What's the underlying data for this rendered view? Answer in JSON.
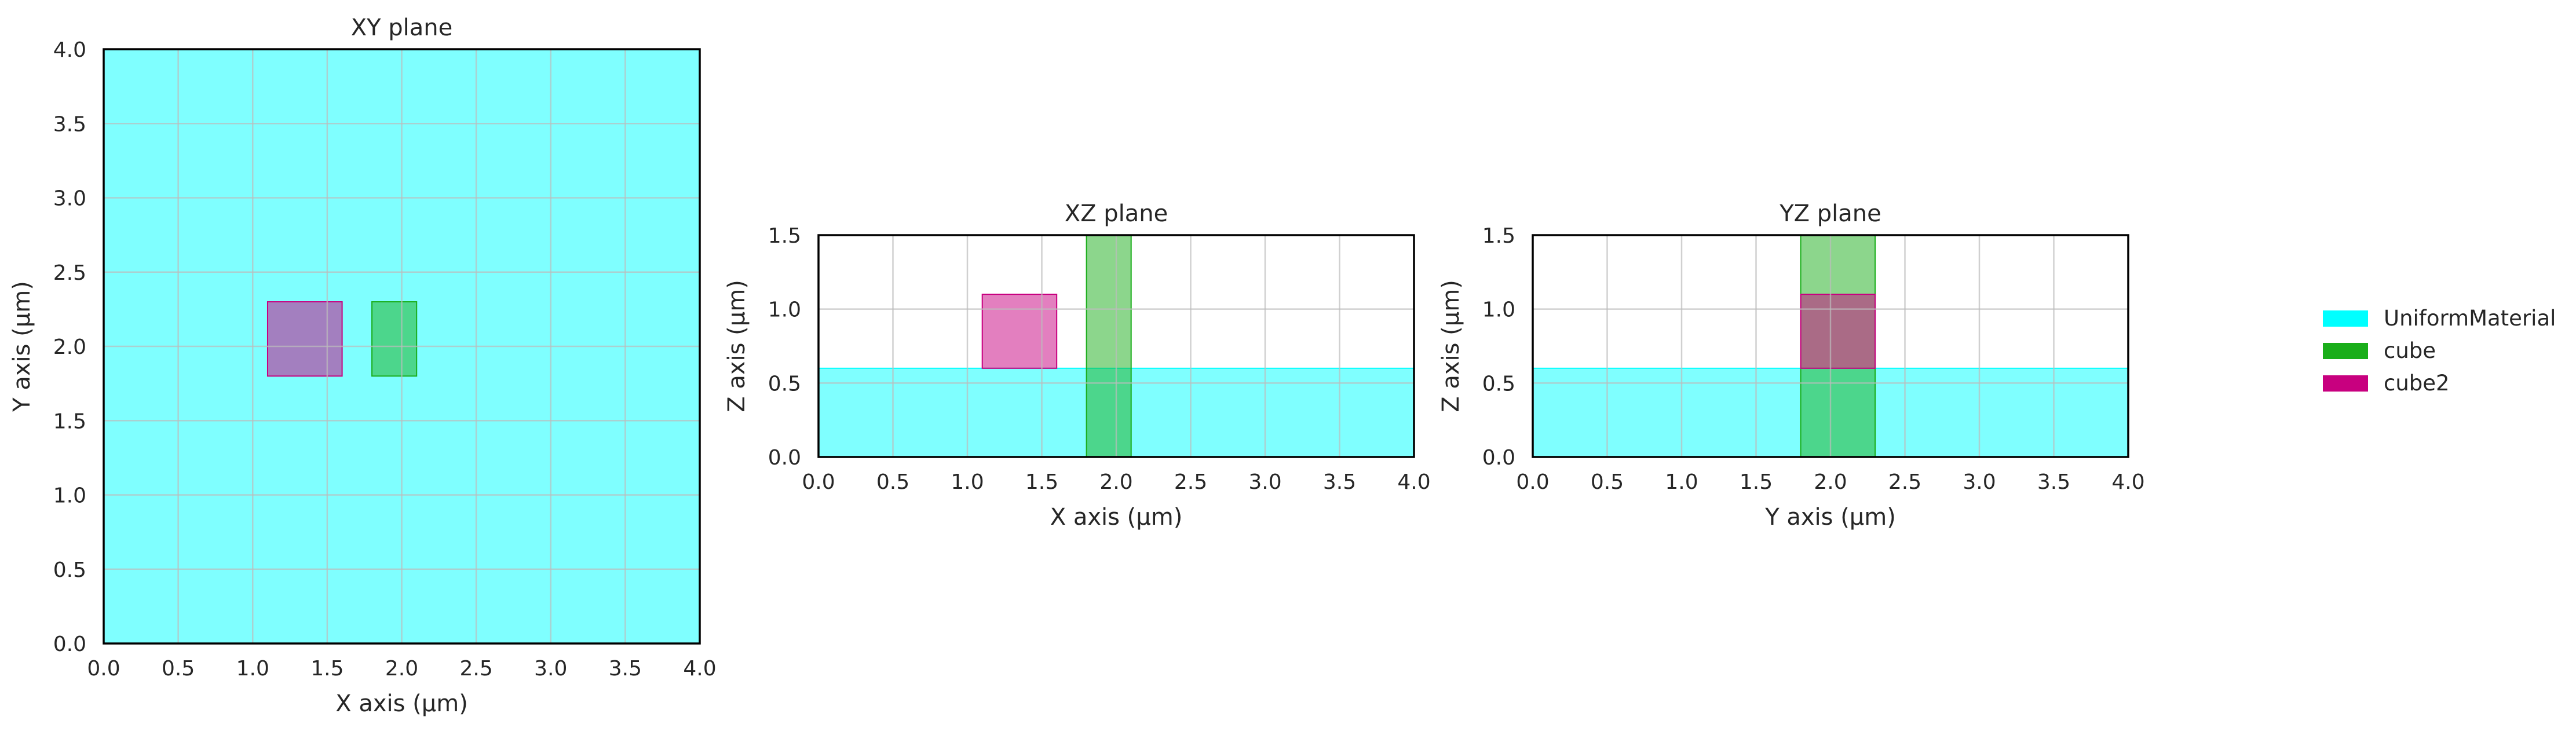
{
  "colors": {
    "UniformMaterial": "#00ffff",
    "cube": "#1aae1a",
    "cube2": "#c8007f",
    "grid": "#bcbcbc",
    "frame": "#000000",
    "text": "#262626"
  },
  "legend": {
    "placement": "right",
    "entries": [
      {
        "label": "UniformMaterial",
        "color": "#00ffff"
      },
      {
        "label": "cube",
        "color": "#1aae1a"
      },
      {
        "label": "cube2",
        "color": "#c8007f"
      }
    ]
  },
  "chart_data": [
    {
      "type": "area",
      "title": "XY plane",
      "xlabel": "X axis (µm)",
      "ylabel": "Y axis (µm)",
      "xlim": [
        0.0,
        4.0
      ],
      "ylim": [
        0.0,
        4.0
      ],
      "xticks": [
        "0.0",
        "0.5",
        "1.0",
        "1.5",
        "2.0",
        "2.5",
        "3.0",
        "3.5",
        "4.0"
      ],
      "yticks": [
        "0.0",
        "0.5",
        "1.0",
        "1.5",
        "2.0",
        "2.5",
        "3.0",
        "3.5",
        "4.0"
      ],
      "grid": true,
      "regions": [
        {
          "material": "UniformMaterial",
          "x": [
            0.0,
            4.0
          ],
          "y": [
            0.0,
            4.0
          ]
        },
        {
          "material": "cube2",
          "x": [
            1.1,
            1.6
          ],
          "y": [
            1.8,
            2.3
          ]
        },
        {
          "material": "cube",
          "x": [
            1.8,
            2.1
          ],
          "y": [
            1.8,
            2.3
          ]
        }
      ]
    },
    {
      "type": "area",
      "title": "XZ plane",
      "xlabel": "X axis (µm)",
      "ylabel": "Z axis (µm)",
      "xlim": [
        0.0,
        4.0
      ],
      "ylim": [
        0.0,
        1.5
      ],
      "xticks": [
        "0.0",
        "0.5",
        "1.0",
        "1.5",
        "2.0",
        "2.5",
        "3.0",
        "3.5",
        "4.0"
      ],
      "yticks": [
        "0.0",
        "0.5",
        "1.0",
        "1.5"
      ],
      "grid": true,
      "regions": [
        {
          "material": "UniformMaterial",
          "x": [
            0.0,
            4.0
          ],
          "y": [
            0.0,
            0.6
          ]
        },
        {
          "material": "cube2",
          "x": [
            1.1,
            1.6
          ],
          "y": [
            0.6,
            1.1
          ]
        },
        {
          "material": "cube",
          "x": [
            1.8,
            2.1
          ],
          "y": [
            0.0,
            1.5
          ]
        }
      ]
    },
    {
      "type": "area",
      "title": "YZ plane",
      "xlabel": "Y axis (µm)",
      "ylabel": "Z axis (µm)",
      "xlim": [
        0.0,
        4.0
      ],
      "ylim": [
        0.0,
        1.5
      ],
      "xticks": [
        "0.0",
        "0.5",
        "1.0",
        "1.5",
        "2.0",
        "2.5",
        "3.0",
        "3.5",
        "4.0"
      ],
      "yticks": [
        "0.0",
        "0.5",
        "1.0",
        "1.5"
      ],
      "grid": true,
      "regions": [
        {
          "material": "UniformMaterial",
          "x": [
            0.0,
            4.0
          ],
          "y": [
            0.0,
            0.6
          ]
        },
        {
          "material": "cube",
          "x": [
            1.8,
            2.3
          ],
          "y": [
            0.0,
            1.5
          ]
        },
        {
          "material": "cube2",
          "x": [
            1.8,
            2.3
          ],
          "y": [
            0.6,
            1.1
          ]
        }
      ]
    }
  ]
}
